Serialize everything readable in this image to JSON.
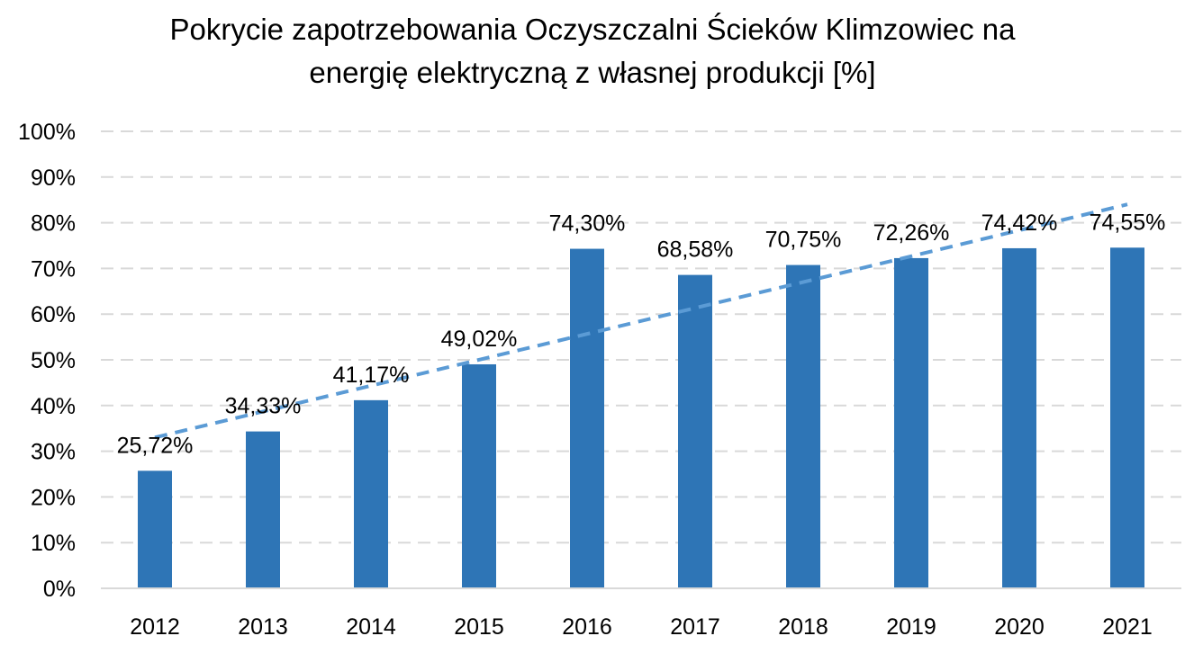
{
  "chart_data": {
    "type": "bar",
    "title_lines": [
      "Pokrycie zapotrzebowania Oczyszczalni Ścieków Klimzowiec na",
      "energię elektryczną z własnej produkcji [%]"
    ],
    "categories": [
      "2012",
      "2013",
      "2014",
      "2015",
      "2016",
      "2017",
      "2018",
      "2019",
      "2020",
      "2021"
    ],
    "values": [
      25.72,
      34.33,
      41.17,
      49.02,
      74.3,
      68.58,
      70.75,
      72.26,
      74.42,
      74.55
    ],
    "data_labels": [
      "25,72%",
      "34,33%",
      "41,17%",
      "49,02%",
      "74,30%",
      "68,58%",
      "70,75%",
      "72,26%",
      "74,42%",
      "74,55%"
    ],
    "y_ticks": [
      0,
      10,
      20,
      30,
      40,
      50,
      60,
      70,
      80,
      90,
      100
    ],
    "y_tick_labels": [
      "0%",
      "10%",
      "20%",
      "30%",
      "40%",
      "50%",
      "60%",
      "70%",
      "80%",
      "90%",
      "100%"
    ],
    "ylim": [
      0,
      100
    ],
    "grid": true,
    "trendline": {
      "type": "linear",
      "style": "dashed"
    },
    "xlabel": "",
    "ylabel": "",
    "colors": {
      "bar": "#2E75B6",
      "trendline": "#5B9BD5",
      "grid": "#D9D9D9",
      "axis": "#D9D9D9",
      "text": "#000000"
    }
  }
}
